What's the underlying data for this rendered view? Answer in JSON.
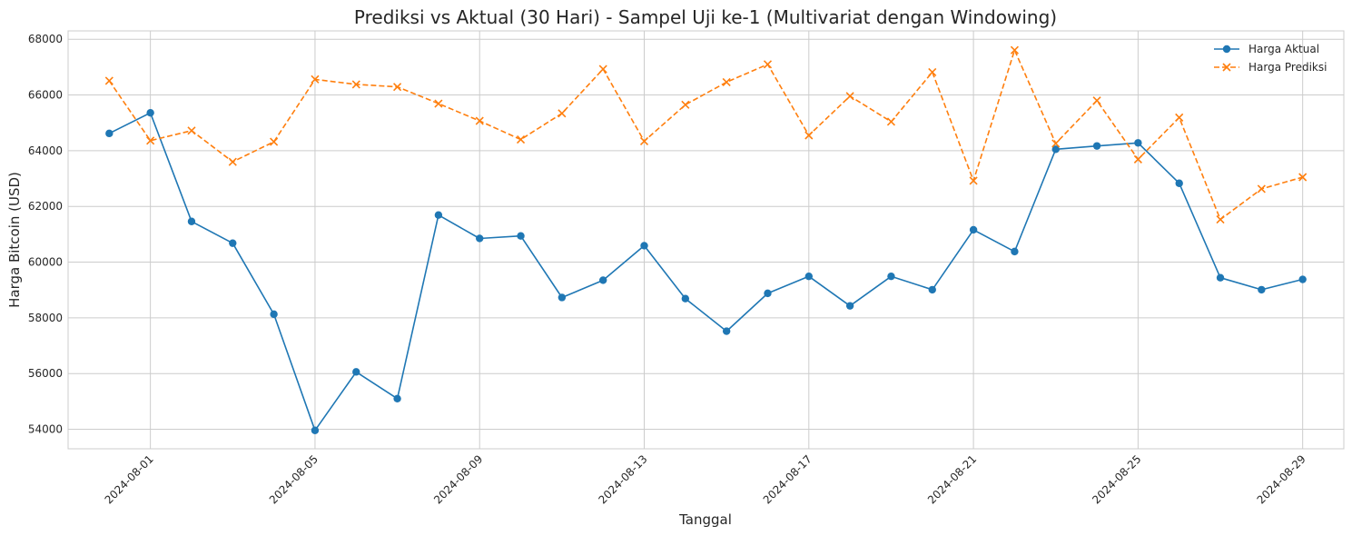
{
  "chart_data": {
    "type": "line",
    "title": "Prediksi vs Aktual (30 Hari) - Sampel Uji ke-1 (Multivariat dengan Windowing)",
    "xlabel": "Tanggal",
    "ylabel": "Harga Bitcoin (USD)",
    "x": [
      "2024-07-31",
      "2024-08-01",
      "2024-08-02",
      "2024-08-03",
      "2024-08-04",
      "2024-08-05",
      "2024-08-06",
      "2024-08-07",
      "2024-08-08",
      "2024-08-09",
      "2024-08-10",
      "2024-08-11",
      "2024-08-12",
      "2024-08-13",
      "2024-08-14",
      "2024-08-15",
      "2024-08-16",
      "2024-08-17",
      "2024-08-18",
      "2024-08-19",
      "2024-08-20",
      "2024-08-21",
      "2024-08-22",
      "2024-08-23",
      "2024-08-24",
      "2024-08-25",
      "2024-08-26",
      "2024-08-27",
      "2024-08-28",
      "2024-08-29"
    ],
    "xticks": [
      "2024-08-01",
      "2024-08-05",
      "2024-08-09",
      "2024-08-13",
      "2024-08-17",
      "2024-08-21",
      "2024-08-25",
      "2024-08-29"
    ],
    "xlim": [
      "2024-07-30",
      "2024-08-30"
    ],
    "yticks": [
      54000,
      56000,
      58000,
      60000,
      62000,
      64000,
      66000,
      68000
    ],
    "ylim": [
      53300,
      68300
    ],
    "grid": true,
    "legend": "top-right",
    "series": [
      {
        "name": "Harga Aktual",
        "color": "#1f77b4",
        "marker": "circle",
        "linestyle": "solid",
        "values": [
          64620,
          65360,
          61460,
          60680,
          58130,
          53960,
          56060,
          55100,
          61690,
          60850,
          60940,
          58730,
          59350,
          60590,
          58690,
          57520,
          58880,
          59490,
          58430,
          59490,
          59010,
          61160,
          60380,
          64050,
          64170,
          64280,
          62830,
          59440,
          59010,
          59380
        ]
      },
      {
        "name": "Harga Prediksi",
        "color": "#ff7f0e",
        "marker": "x",
        "linestyle": "dashed",
        "values": [
          66510,
          64360,
          64720,
          63600,
          64320,
          66560,
          66380,
          66290,
          65690,
          65070,
          64400,
          65340,
          66930,
          64340,
          65650,
          66460,
          67100,
          64550,
          65960,
          65040,
          66820,
          62920,
          67610,
          64260,
          65800,
          63690,
          65190,
          61530,
          62630,
          63050
        ]
      }
    ]
  }
}
